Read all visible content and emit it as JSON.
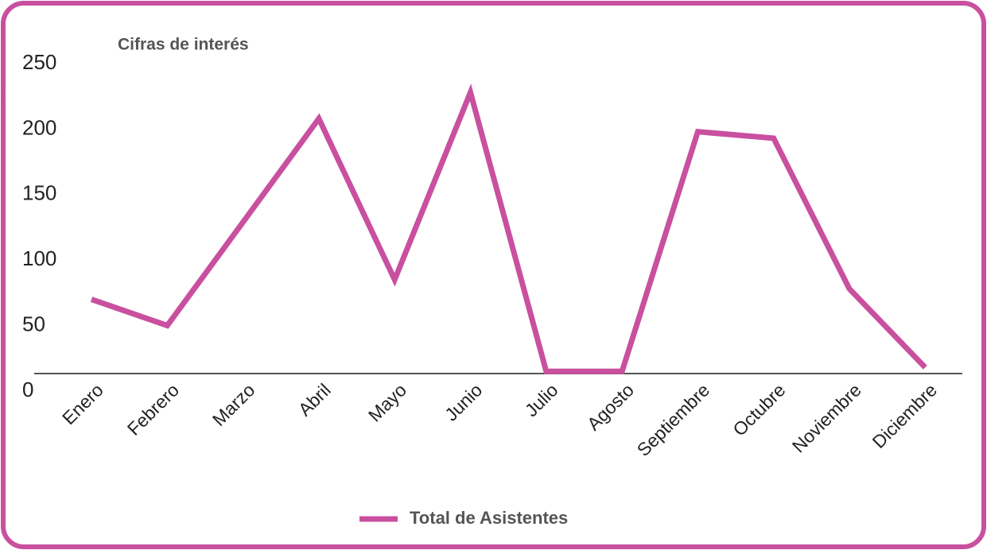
{
  "chart_data": {
    "type": "line",
    "title": "Cifras de interés",
    "categories": [
      "Enero",
      "Febrero",
      "Marzo",
      "Abril",
      "Mayo",
      "Junio",
      "Julio",
      "Agosto",
      "Septiembre",
      "Octubre",
      "Noviembre",
      "Diciembre"
    ],
    "series": [
      {
        "name": "Total de Asistentes",
        "color": "#c9509f",
        "values": [
          70,
          50,
          129,
          208,
          85,
          228,
          15,
          15,
          198,
          193,
          78,
          18
        ]
      }
    ],
    "ylim": [
      0,
      250
    ],
    "yticks": [
      0,
      50,
      100,
      150,
      200,
      250
    ],
    "grid": false
  }
}
